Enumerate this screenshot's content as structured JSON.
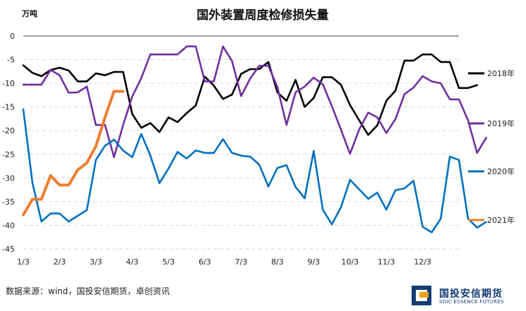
{
  "chart_data": {
    "type": "line",
    "title": "国外装置周度检修损失量",
    "ylabel": "万吨",
    "xlabel": "",
    "ylim": [
      -45,
      0
    ],
    "yticks": [
      0,
      -5,
      -10,
      -15,
      -20,
      -25,
      -30,
      -35,
      -40,
      -45
    ],
    "x_tick_labels": [
      "1/3",
      "2/3",
      "3/3",
      "4/3",
      "5/3",
      "6/3",
      "7/3",
      "8/3",
      "9/3",
      "10/3",
      "11/3",
      "12/3"
    ],
    "x_tick_weeks": [
      0,
      4,
      8,
      12,
      16,
      20,
      24,
      28,
      32,
      36,
      40,
      44
    ],
    "weeks": 48,
    "grid": true,
    "legend_position": "right",
    "series": [
      {
        "name": "2018年",
        "color": "#000000",
        "values": [
          -6.2,
          -7.8,
          -8.5,
          -7.2,
          -6.7,
          -7.3,
          -9.6,
          -9.6,
          -7.9,
          -8.3,
          -7.6,
          -7.6,
          -16.5,
          -19.4,
          -18.4,
          -20.3,
          -17.2,
          -18.2,
          -16.3,
          -14.7,
          -8.6,
          -10.5,
          -13.3,
          -12.4,
          -8.0,
          -7.0,
          -7.0,
          -5.5,
          -11.9,
          -13.7,
          -9.3,
          -15.0,
          -13.1,
          -8.7,
          -8.7,
          -10.3,
          -14.6,
          -17.8,
          -20.9,
          -18.9,
          -13.7,
          -11.6,
          -5.2,
          -5.2,
          -3.9,
          -3.9,
          -5.5,
          -5.5,
          -11.0,
          -11.0,
          -10.4
        ]
      },
      {
        "name": "2019年",
        "color": "#7030a0",
        "values": [
          -10.3,
          -10.3,
          -10.3,
          -7.2,
          -8.3,
          -12.0,
          -11.9,
          -10.7,
          -18.8,
          -18.8,
          -25.6,
          -18.8,
          -12.8,
          -8.9,
          -3.9,
          -3.9,
          -3.9,
          -3.9,
          -2.2,
          -2.2,
          -9.6,
          -9.6,
          -2.2,
          -5.3,
          -12.7,
          -9.0,
          -6.3,
          -6.3,
          -10.8,
          -18.8,
          -11.9,
          -10.7,
          -8.8,
          -10.2,
          -14.8,
          -19.8,
          -24.9,
          -19.8,
          -16.2,
          -17.2,
          -20.5,
          -17.6,
          -12.3,
          -10.9,
          -8.5,
          -9.6,
          -10.0,
          -13.4,
          -13.4,
          -17.8,
          -24.7,
          -21.5
        ]
      },
      {
        "name": "2020年",
        "color": "#0070c0",
        "values": [
          -15.5,
          -31.0,
          -39.2,
          -37.5,
          -37.5,
          -39.2,
          -38.0,
          -36.8,
          -26.2,
          -23.2,
          -21.9,
          -24.2,
          -25.6,
          -20.7,
          -25.3,
          -31.1,
          -28.0,
          -24.5,
          -25.9,
          -24.2,
          -24.7,
          -24.7,
          -21.8,
          -24.7,
          -25.3,
          -25.5,
          -27.2,
          -31.8,
          -27.9,
          -27.3,
          -31.9,
          -34.3,
          -24.3,
          -36.7,
          -39.8,
          -36.2,
          -30.4,
          -32.4,
          -34.4,
          -33.1,
          -36.7,
          -32.6,
          -32.2,
          -30.6,
          -40.3,
          -41.5,
          -38.6,
          -25.5,
          -26.2,
          -38.6,
          -40.5,
          -39.3
        ]
      },
      {
        "name": "2021年",
        "color": "#ed7d31",
        "values": [
          -37.8,
          -34.5,
          -34.5,
          -29.5,
          -31.5,
          -31.5,
          -28.3,
          -26.8,
          -23.3,
          -17.2,
          -11.7,
          -11.7
        ]
      }
    ],
    "legend_entries": [
      "2018年",
      "2019年",
      "2020年",
      "2021年"
    ]
  },
  "source_text": "数据来源：wind，国投安信期货，卓创资讯",
  "logo": {
    "name_cn": "国投安信期货",
    "name_en": "SDIC ESSENCE FUTURES"
  },
  "colors": {
    "grid": "#d9d9d9",
    "axis": "#444444",
    "logo_blue": "#123c73",
    "logo_gold": "#e8a21b"
  }
}
